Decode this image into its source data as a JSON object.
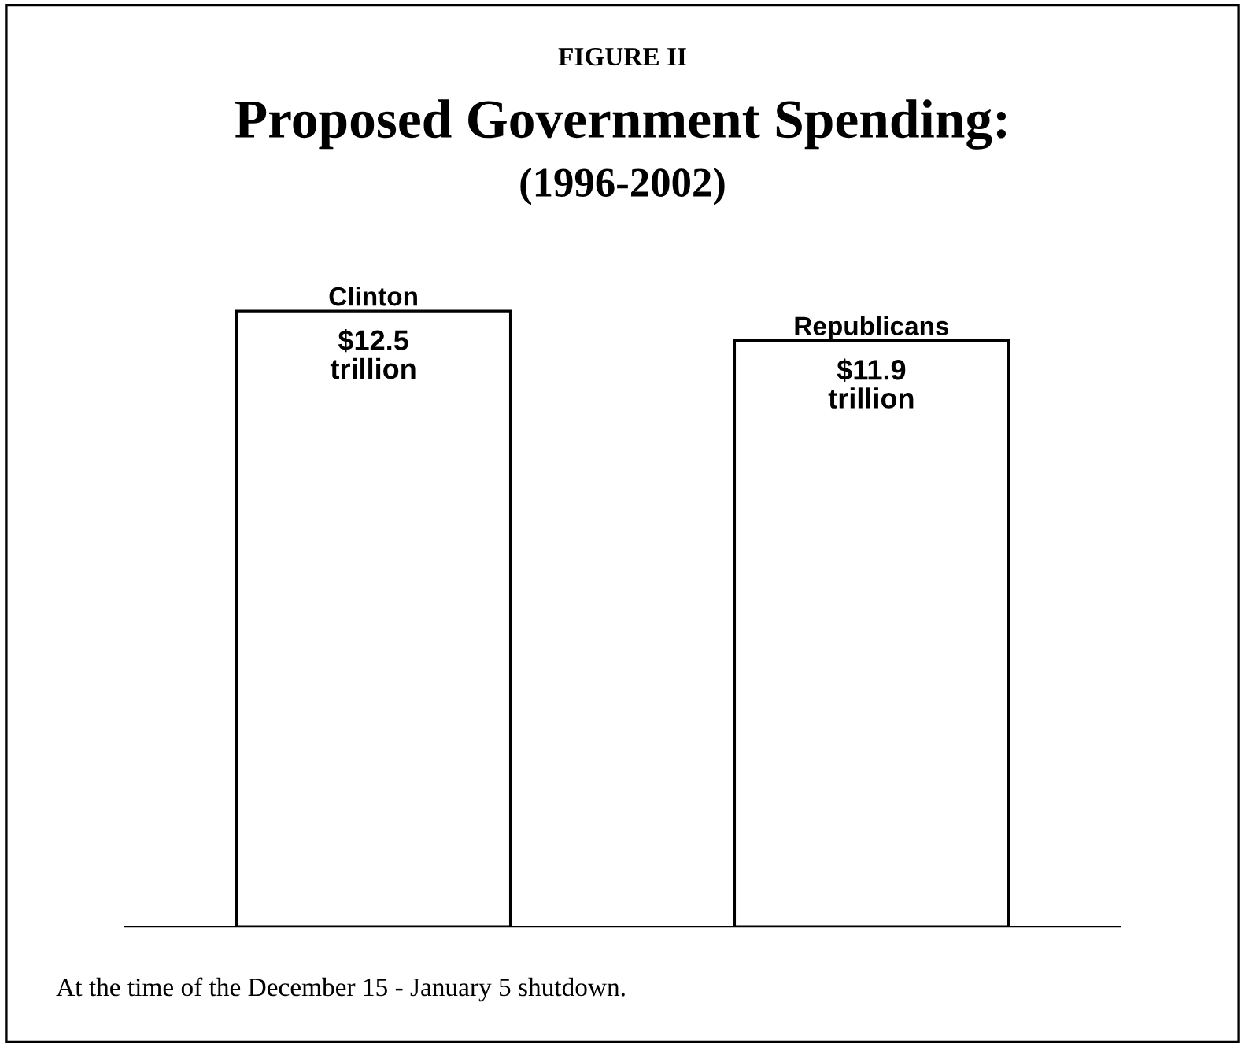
{
  "chart_data": {
    "type": "bar",
    "title": "Proposed Government Spending:",
    "subtitle": "(1996-2002)",
    "annotations": [
      "FIGURE II",
      "At the time of the December 15 - January 5 shutdown."
    ],
    "categories": [
      "Clinton",
      "Republicans"
    ],
    "values": [
      12.5,
      11.9
    ],
    "value_labels": [
      "$12.5\ntrillion",
      "$11.9\ntrillion"
    ],
    "color": "#ffffff"
  }
}
